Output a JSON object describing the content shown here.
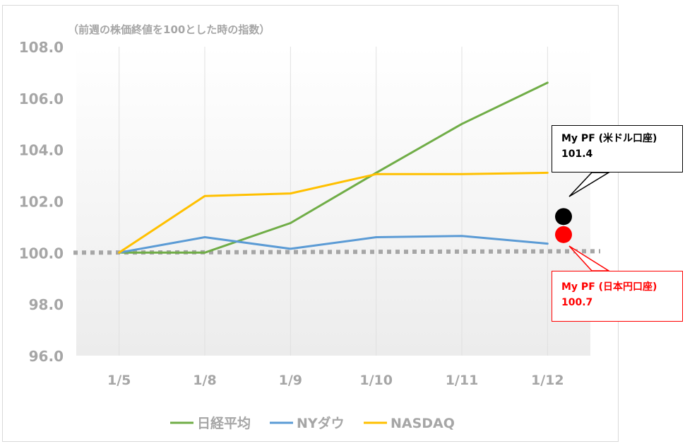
{
  "chart_data": {
    "type": "line",
    "title": "（前週の株価終値を100とした時の指数）",
    "categories": [
      "1/5",
      "1/8",
      "1/9",
      "1/10",
      "1/11",
      "1/12"
    ],
    "ylim": [
      96,
      108
    ],
    "yticks": [
      "96.0",
      "98.0",
      "100.0",
      "102.0",
      "104.0",
      "106.0",
      "108.0"
    ],
    "grid": "vertical",
    "legend_position": "bottom",
    "baseline": {
      "value": 100.0,
      "color": "#a6a6a6",
      "style": "dotted"
    },
    "series": [
      {
        "name": "日経平均",
        "color": "#70ad47",
        "values": [
          100.0,
          100.0,
          101.15,
          103.1,
          105.0,
          106.6
        ]
      },
      {
        "name": "NYダウ",
        "color": "#5b9bd5",
        "values": [
          100.0,
          100.6,
          100.15,
          100.6,
          100.65,
          100.35
        ]
      },
      {
        "name": "NASDAQ",
        "color": "#ffc000",
        "values": [
          100.0,
          102.2,
          102.3,
          103.05,
          103.05,
          103.1
        ]
      }
    ],
    "points": [
      {
        "label": "My PF (米ドル口座)",
        "value": 101.4,
        "display": "101.4",
        "color": "#000000"
      },
      {
        "label": "My PF (日本円口座)",
        "value": 100.7,
        "display": "100.7",
        "color": "#ff0000"
      }
    ]
  }
}
